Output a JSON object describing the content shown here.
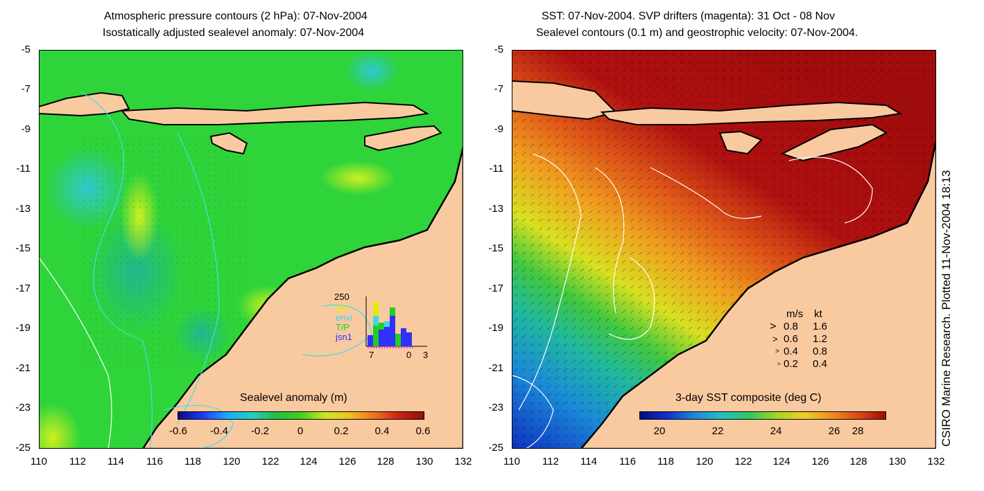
{
  "left_panel": {
    "title_line1": "Atmospheric pressure contours (2 hPa): 07-Nov-2004",
    "title_line2": "Isostatically adjusted sealevel anomaly: 07-Nov-2004",
    "colorbar_label": "Sealevel anomaly (m)",
    "colorbar_ticks": [
      "-0.6",
      "-0.4",
      "-0.2",
      "0",
      "0.2",
      "0.4",
      "0.6"
    ],
    "inset": {
      "ymax_label": "250",
      "missions": [
        {
          "name": "gfo",
          "color": "#e8e800"
        },
        {
          "name": "envi",
          "color": "#40d8e8"
        },
        {
          "name": "T/P",
          "color": "#20d020"
        },
        {
          "name": "jsn1",
          "color": "#3030ff"
        }
      ],
      "x_labels": [
        "7",
        "0",
        "3"
      ]
    }
  },
  "right_panel": {
    "title_line1": "SST: 07-Nov-2004. SVP drifters (magenta): 31 Oct - 08 Nov",
    "title_line2": "Sealevel contours (0.1 m) and geostrophic velocity: 07-Nov-2004.",
    "colorbar_label": "3-day SST composite (deg C)",
    "colorbar_ticks": [
      "20",
      "22",
      "24",
      "26",
      "28"
    ],
    "velocity_legend": {
      "header_ms": "m/s",
      "header_kt": "kt",
      "rows": [
        {
          "ms": "0.8",
          "kt": "1.6"
        },
        {
          "ms": "0.6",
          "kt": "1.2"
        },
        {
          "ms": "0.4",
          "kt": "0.8"
        },
        {
          "ms": "0.2",
          "kt": "0.4"
        }
      ]
    }
  },
  "axes": {
    "y_ticks": [
      "-5",
      "-7",
      "-9",
      "-11",
      "-13",
      "-15",
      "-17",
      "-19",
      "-21",
      "-23",
      "-25"
    ],
    "x_ticks": [
      "110",
      "112",
      "114",
      "116",
      "118",
      "120",
      "122",
      "124",
      "126",
      "128",
      "130",
      "132"
    ]
  },
  "credit": "CSIRO Marine Research. Plotted 11-Nov-2004 18:13",
  "colors": {
    "land": "#f9c9a0",
    "sla_background": "#2ed43a",
    "sst_warm": "#b01010",
    "contour_cyan": "#40e0e0"
  }
}
